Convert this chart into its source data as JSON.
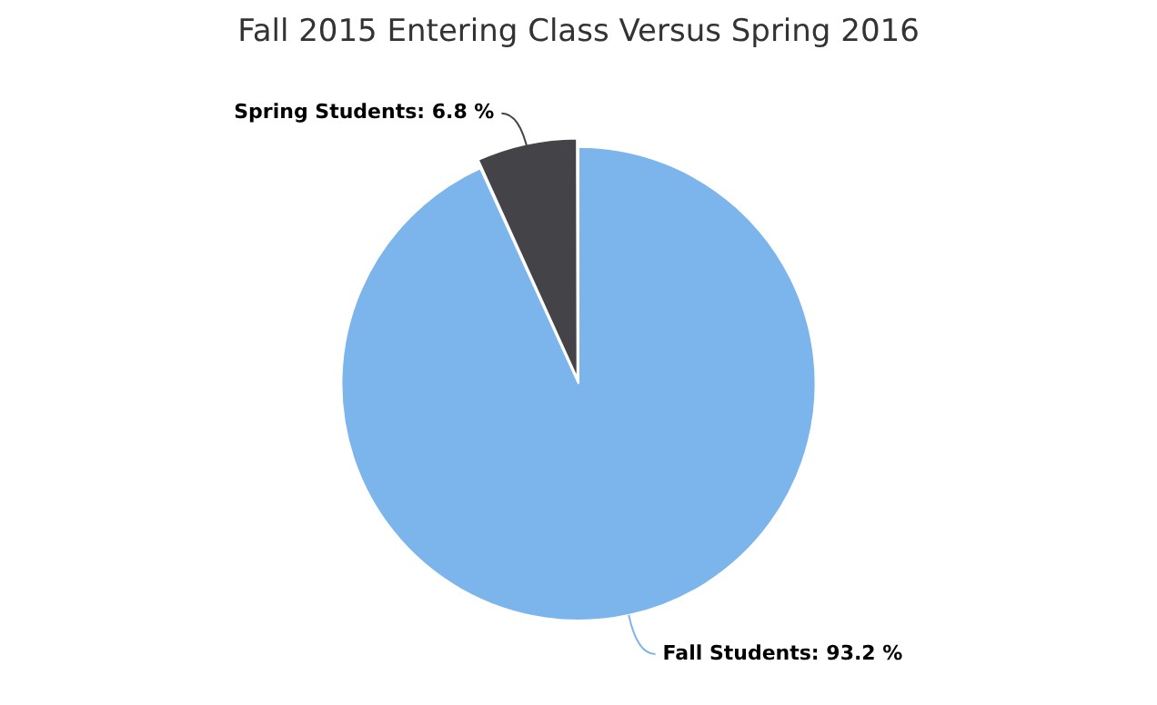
{
  "chart_data": {
    "type": "pie",
    "title": "Fall 2015 Entering Class Versus Spring 2016",
    "categories": [
      "Fall Students",
      "Spring Students"
    ],
    "values": [
      93.2,
      6.8
    ],
    "colors": [
      "#7cb5ec",
      "#434348"
    ],
    "value_labels": [
      "93.2 %",
      "6.8 %"
    ],
    "legend": false
  }
}
